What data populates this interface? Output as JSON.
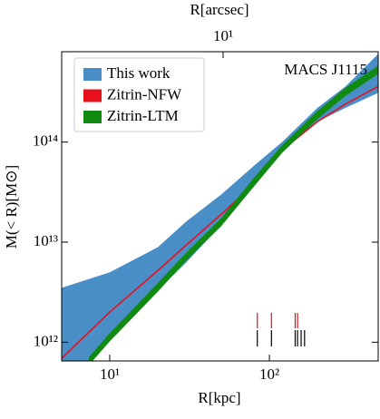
{
  "chart_data": {
    "type": "band",
    "xlabel": "R[kpc]",
    "x2label": "R[arcsec]",
    "ylabel": "M(< R)[M⊙]",
    "annotation": "MACS J1115",
    "log_x": true,
    "log_y": true,
    "xlim": [
      5,
      480
    ],
    "xticks": [
      {
        "value": 10,
        "label": "10¹"
      },
      {
        "value": 100,
        "label": "10²"
      }
    ],
    "x2lim": [
      0.96,
      95
    ],
    "x2ticks": [
      {
        "value": 10,
        "label": "10¹"
      }
    ],
    "ylim": [
      650000000000.0,
      800000000000000.0
    ],
    "yticks": [
      {
        "value": 1000000000000.0,
        "label": "10¹²"
      },
      {
        "value": 10000000000000.0,
        "label": "10¹³"
      },
      {
        "value": 100000000000000.0,
        "label": "10¹⁴"
      }
    ],
    "legend": "upper left",
    "series": [
      {
        "name": "This work",
        "color": "#4a8ec8",
        "x": [
          5,
          10,
          20,
          30,
          50,
          80,
          120,
          200,
          300,
          480
        ],
        "upper": [
          3500000000000.0,
          5000000000000.0,
          8900000000000.0,
          16000000000000.0,
          30000000000000.0,
          58000000000000.0,
          100000000000000.0,
          220000000000000.0,
          360000000000000.0,
          760000000000000.0
        ],
        "lower": [
          320000000000.0,
          1100000000000.0,
          3300000000000.0,
          6200000000000.0,
          15000000000000.0,
          43000000000000.0,
          85000000000000.0,
          160000000000000.0,
          220000000000000.0,
          310000000000000.0
        ]
      },
      {
        "name": "Zitrin-NFW",
        "color": "#e8101a",
        "x": [
          5,
          10,
          20,
          30,
          50,
          80,
          120,
          200,
          300,
          480
        ],
        "values": [
          690000000000.0,
          2000000000000.0,
          5200000000000.0,
          9300000000000.0,
          19000000000000.0,
          38000000000000.0,
          83000000000000.0,
          160000000000000.0,
          240000000000000.0,
          360000000000000.0
        ]
      },
      {
        "name": "Zitrin-LTM",
        "color": "#118a11",
        "x": [
          7.4,
          10,
          20,
          30,
          50,
          80,
          120,
          200,
          300,
          480
        ],
        "upper": [
          710000000000.0,
          1230000000000.0,
          3900000000000.0,
          7800000000000.0,
          17400000000000.0,
          44000000000000.0,
          93000000000000.0,
          204000000000000.0,
          350000000000000.0,
          580000000000000.0
        ],
        "lower": [
          590000000000.0,
          1020000000000.0,
          3200000000000.0,
          6500000000000.0,
          14500000000000.0,
          36000000000000.0,
          78000000000000.0,
          170000000000000.0,
          290000000000000.0,
          480000000000000.0
        ]
      }
    ],
    "rugs": [
      {
        "color": "#e8101a",
        "values": [
          84,
          103,
          145,
          150
        ]
      },
      {
        "color": "#000000",
        "values": [
          84,
          103,
          145,
          150,
          158,
          166
        ]
      }
    ]
  }
}
